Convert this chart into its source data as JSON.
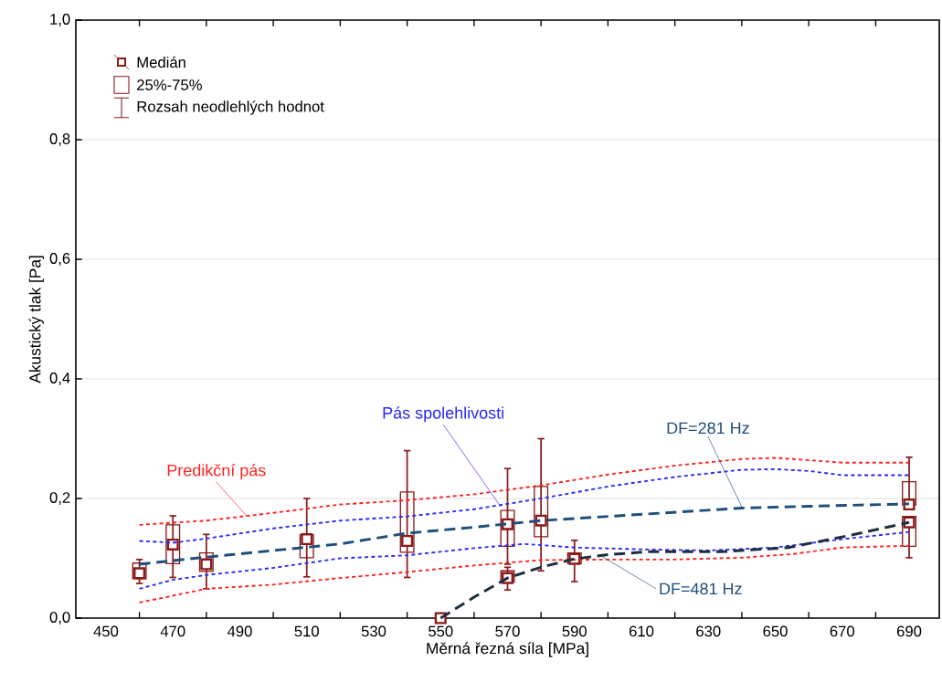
{
  "chart_data": {
    "type": "box",
    "xlabel": "Měrná řezná síla [MPa]",
    "ylabel": "Akustický tlak [Pa]",
    "xlim": [
      441,
      699
    ],
    "ylim": [
      0,
      1
    ],
    "xticks": [
      450,
      {
        "value": 460,
        "label": null
      },
      470,
      {
        "value": 480,
        "label": null
      },
      490,
      {
        "value": 500,
        "label": null
      },
      510,
      {
        "value": 520,
        "label": null
      },
      530,
      {
        "value": 540,
        "label": null
      },
      550,
      {
        "value": 560,
        "label": null
      },
      570,
      {
        "value": 580,
        "label": null
      },
      590,
      {
        "value": 600,
        "label": null
      },
      610,
      {
        "value": 620,
        "label": null
      },
      630,
      {
        "value": 640,
        "label": null
      },
      650,
      {
        "value": 660,
        "label": null
      },
      670,
      {
        "value": 680,
        "label": null
      },
      690
    ],
    "yticks": [
      {
        "value": 0,
        "label": "0,0"
      },
      {
        "value": 0.2,
        "label": "0,2"
      },
      {
        "value": 0.4,
        "label": "0,4"
      },
      {
        "value": 0.6,
        "label": "0,6"
      },
      {
        "value": 0.8,
        "label": "0,8"
      },
      {
        "value": 1,
        "label": "1,0"
      }
    ],
    "grid": "y",
    "series": [
      {
        "type": "box",
        "color": "#8b1a1a",
        "x": [
          460,
          470,
          480,
          510,
          540,
          550,
          570,
          570,
          580,
          590,
          690,
          690
        ],
        "boxes": [
          {
            "low": 0.058,
            "q1": 0.066,
            "median": 0.075,
            "q3": 0.092,
            "high": 0.098
          },
          {
            "low": 0.068,
            "q1": 0.091,
            "median": 0.123,
            "q3": 0.156,
            "high": 0.171
          },
          {
            "low": 0.049,
            "q1": 0.078,
            "median": 0.09,
            "q3": 0.109,
            "high": 0.14
          },
          {
            "low": 0.069,
            "q1": 0.101,
            "median": 0.132,
            "q3": 0.139,
            "high": 0.2
          },
          {
            "low": 0.068,
            "q1": 0.11,
            "median": 0.129,
            "q3": 0.211,
            "high": 0.28
          },
          {
            "low": 0,
            "q1": 0,
            "median": 0,
            "q3": 0,
            "high": 0
          },
          {
            "low": 0.09,
            "q1": 0.12,
            "median": 0.157,
            "q3": 0.18,
            "high": 0.25
          },
          {
            "low": 0.047,
            "q1": 0.06,
            "median": 0.067,
            "q3": 0.079,
            "high": 0.085
          },
          {
            "low": 0.079,
            "q1": 0.136,
            "median": 0.163,
            "q3": 0.22,
            "high": 0.3
          },
          {
            "low": 0.061,
            "q1": 0.091,
            "median": 0.099,
            "q3": 0.109,
            "high": 0.13
          },
          {
            "low": 0.189,
            "q1": 0.189,
            "median": 0.19,
            "q3": 0.228,
            "high": 0.269
          },
          {
            "low": 0.101,
            "q1": 0.12,
            "median": 0.16,
            "q3": 0.17,
            "high": 0.17
          }
        ]
      },
      {
        "type": "line",
        "color": "#ff2020",
        "line_style": "dotted",
        "x": [
          460,
          480,
          500,
          520,
          540,
          560,
          580,
          600,
          620,
          640,
          650,
          670,
          690
        ],
        "values": [
          0.156,
          0.163,
          0.176,
          0.19,
          0.197,
          0.207,
          0.222,
          0.24,
          0.255,
          0.266,
          0.268,
          0.26,
          0.26
        ]
      },
      {
        "type": "line",
        "color": "#ff2020",
        "line_style": "dotted",
        "x": [
          460,
          480,
          500,
          520,
          540,
          560,
          580,
          600,
          620,
          640,
          655,
          670,
          690
        ],
        "values": [
          0.026,
          0.049,
          0.056,
          0.067,
          0.077,
          0.088,
          0.097,
          0.098,
          0.098,
          0.101,
          0.107,
          0.118,
          0.121
        ]
      },
      {
        "type": "line",
        "color": "#2828ff",
        "line_style": "dotted",
        "x": [
          460,
          470,
          480,
          500,
          520,
          540,
          560,
          580,
          600,
          620,
          640,
          650,
          660,
          670,
          690
        ],
        "values": [
          0.129,
          0.126,
          0.133,
          0.15,
          0.163,
          0.17,
          0.182,
          0.2,
          0.22,
          0.236,
          0.248,
          0.249,
          0.246,
          0.239,
          0.239
        ]
      },
      {
        "type": "line",
        "color": "#2828ff",
        "line_style": "dotted",
        "x": [
          460,
          470,
          480,
          500,
          520,
          540,
          560,
          575,
          590,
          610,
          630,
          650,
          670,
          690
        ],
        "values": [
          0.049,
          0.064,
          0.072,
          0.084,
          0.1,
          0.105,
          0.117,
          0.124,
          0.118,
          0.115,
          0.113,
          0.118,
          0.132,
          0.144
        ]
      },
      {
        "type": "line",
        "color": "#1f4e79",
        "line_style": "dashed",
        "x": [
          460,
          480,
          500,
          520,
          540,
          560,
          580,
          600,
          620,
          640,
          660,
          690
        ],
        "values": [
          0.09,
          0.102,
          0.113,
          0.124,
          0.142,
          0.152,
          0.163,
          0.17,
          0.177,
          0.184,
          0.187,
          0.191
        ]
      },
      {
        "type": "line",
        "color": "#1c2e40",
        "line_style": "dashed",
        "x": [
          550,
          560,
          570,
          580,
          590,
          600,
          612,
          634,
          654,
          672,
          690
        ],
        "values": [
          0,
          0.035,
          0.067,
          0.085,
          0.099,
          0.106,
          0.111,
          0.111,
          0.118,
          0.138,
          0.16
        ]
      }
    ],
    "annotations": [
      {
        "text": "Predikční pás",
        "x": 492,
        "y": 0.171
      },
      {
        "text": "Pás spolehlivosti",
        "x": 568,
        "y": 0.186
      },
      {
        "text": "DF=281 Hz",
        "x": 640,
        "y": 0.186
      },
      {
        "text": "DF=481 Hz",
        "x": 598,
        "y": 0.104
      },
      "Medián",
      "25%-75%",
      "Rozsah neodlehlých hodnot"
    ]
  }
}
